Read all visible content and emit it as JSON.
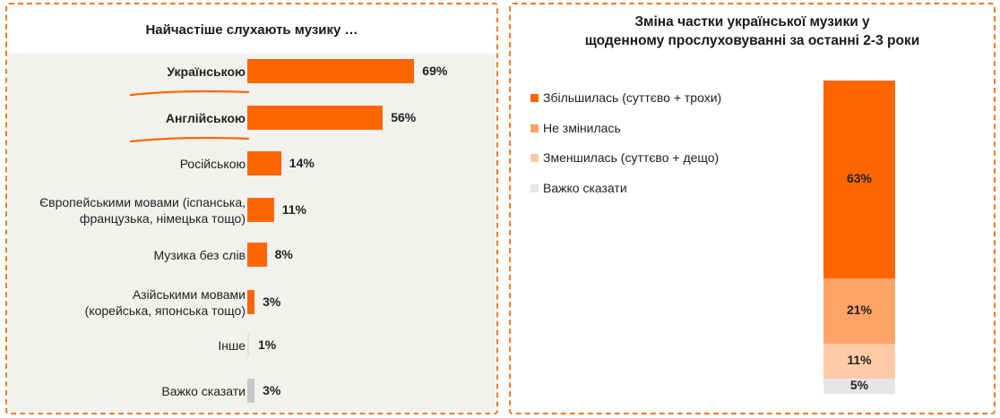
{
  "left_panel": {
    "title": "Найчастіше слухають музику …"
  },
  "right_panel": {
    "title": "Зміна частки української музики у\nщоденному прослуховуванні за останні 2-3 роки"
  },
  "colors": {
    "accent": "#ff6600",
    "no_change": "#ffa366",
    "decreased": "#ffcba6",
    "hard_to_say": "#e6e6e6",
    "grey_bar": "#c8c8c8",
    "border": "#f07b2a"
  },
  "chart_data": [
    {
      "type": "bar",
      "orientation": "horizontal",
      "title": "Найчастіше слухають музику …",
      "categories": [
        "Українською",
        "Англійською",
        "Російською",
        "Європейськими мовами (іспанська,\nфранцузька, німецька тощо)",
        "Музика без слів",
        "Азійськими мовами\n(корейська, японська тощо)",
        "Інше",
        "Важко сказати"
      ],
      "values": [
        69,
        56,
        14,
        11,
        8,
        3,
        1,
        3
      ],
      "value_labels": [
        "69%",
        "56%",
        "14%",
        "11%",
        "8%",
        "3%",
        "1%",
        "3%"
      ],
      "xlim": [
        0,
        100
      ],
      "highlighted": [
        "Українською",
        "Англійською"
      ]
    },
    {
      "type": "bar",
      "orientation": "stacked-vertical",
      "title": "Зміна частки української музики у щоденному прослуховуванні за останні 2-3 роки",
      "series": [
        {
          "name": "Збільшилась (суттєво + трохи)",
          "values": [
            63
          ],
          "label": "63%"
        },
        {
          "name": "Не змінилась",
          "values": [
            21
          ],
          "label": "21%"
        },
        {
          "name": "Зменшилась (суттєво + дещо)",
          "values": [
            11
          ],
          "label": "11%"
        },
        {
          "name": "Важко сказати",
          "values": [
            5
          ],
          "label": "5%"
        }
      ],
      "ylim": [
        0,
        100
      ],
      "legend": "top-left"
    }
  ]
}
